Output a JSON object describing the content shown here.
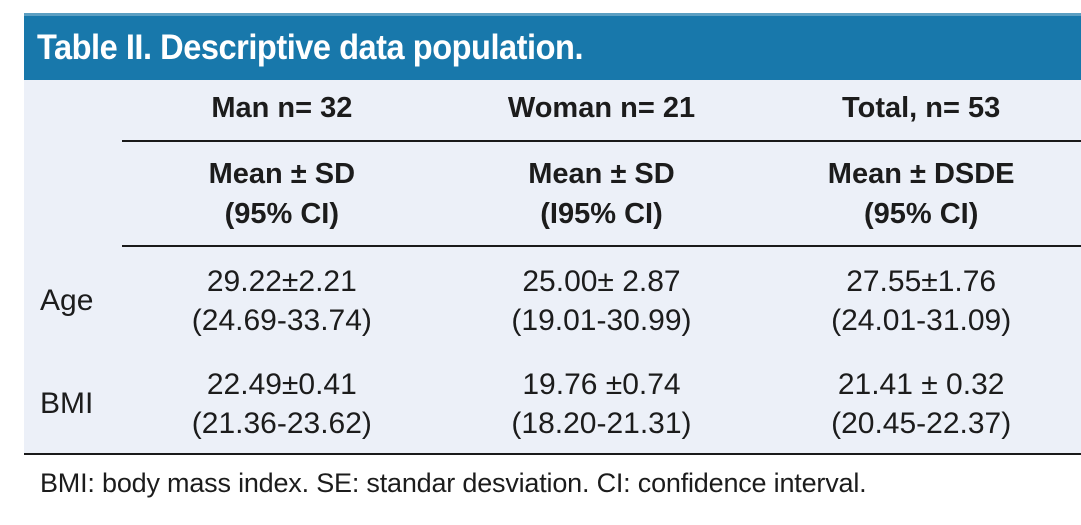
{
  "title": "Table II. Descriptive data population.",
  "colors": {
    "header_bg": "#1878AB",
    "header_top_edge": "#5C9FC2",
    "title_text": "#FFFFFF",
    "body_bg": "#ECF0F8",
    "rule": "#1A1A1A",
    "text": "#1C1C1C"
  },
  "table": {
    "columns": [
      {
        "group": "Man n= 32",
        "sub_line1": "Mean ± SD",
        "sub_line2": "(95% CI)"
      },
      {
        "group": "Woman n= 21",
        "sub_line1": "Mean ± SD",
        "sub_line2": "(I95% CI)"
      },
      {
        "group": "Total, n= 53",
        "sub_line1": "Mean ± DSDE",
        "sub_line2": "(95% CI)"
      }
    ],
    "rows": [
      {
        "label": "Age",
        "cells": [
          {
            "line1": "29.22±2.21",
            "line2": "(24.69-33.74)"
          },
          {
            "line1": "25.00± 2.87",
            "line2": "(19.01-30.99)"
          },
          {
            "line1": "27.55±1.76",
            "line2": "(24.01-31.09)"
          }
        ]
      },
      {
        "label": "BMI",
        "cells": [
          {
            "line1": "22.49±0.41",
            "line2": "(21.36-23.62)"
          },
          {
            "line1": "19.76 ±0.74",
            "line2": "(18.20-21.31)"
          },
          {
            "line1": "21.41 ± 0.32",
            "line2": "(20.45-22.37)"
          }
        ]
      }
    ]
  },
  "footnote": "BMI: body mass index. SE: standar desviation. CI: confidence interval."
}
